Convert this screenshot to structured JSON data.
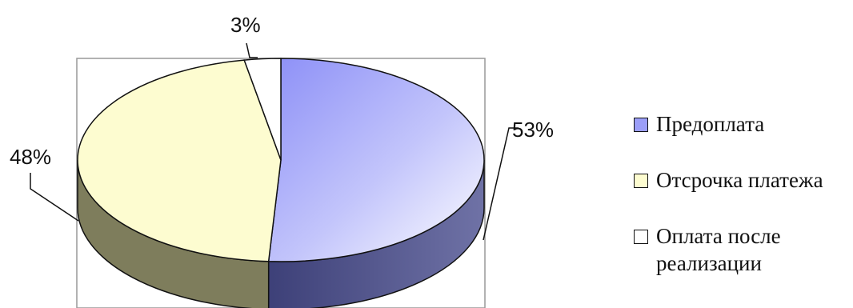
{
  "chart_data": {
    "type": "pie",
    "style": "3d",
    "slices": [
      {
        "label": "Предоплата",
        "value": 53,
        "display": "53%",
        "color": "#9b9ef8",
        "side_color": "#4a4d8a"
      },
      {
        "label": "Отсрочка платежа",
        "value": 48,
        "display": "48%",
        "color": "#fdfcd0",
        "side_color": "#7e7d5c"
      },
      {
        "label": "Оплата после реализации",
        "value": 3,
        "display": "3%",
        "color": "#ffffff",
        "side_color": "#6a6a6a"
      }
    ],
    "legend_placement": "right"
  },
  "legend": {
    "items": [
      {
        "label": "Предоплата",
        "color": "#9b9ef8"
      },
      {
        "label": "Отсрочка платежа",
        "color": "#fdfcd0"
      },
      {
        "label": "Оплата после реализации",
        "color": "#ffffff"
      }
    ]
  }
}
